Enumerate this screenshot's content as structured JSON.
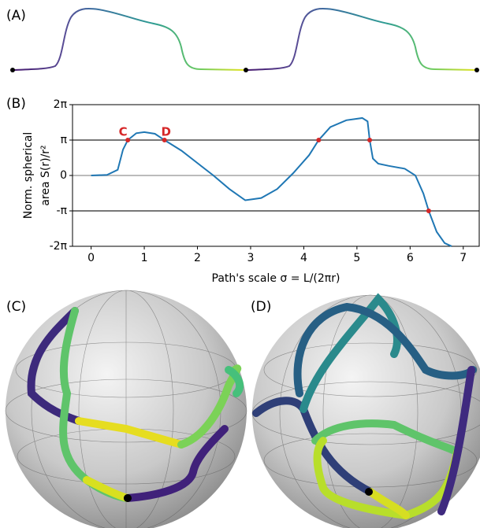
{
  "panel_labels": [
    "(A)",
    "(B)",
    "(C)",
    "(D)"
  ],
  "chart_data": {
    "type": "line",
    "x_label": "Path's scale σ = L/(2πr)",
    "y_label": [
      "Norm. spherical",
      "area S(r)/r²"
    ],
    "x": [
      0,
      0.3,
      0.5,
      0.6,
      0.69,
      0.85,
      1.0,
      1.2,
      1.38,
      1.7,
      2.0,
      2.3,
      2.6,
      2.9,
      3.2,
      3.5,
      3.8,
      4.1,
      4.28,
      4.5,
      4.8,
      5.1,
      5.2,
      5.24,
      5.3,
      5.4,
      5.6,
      5.9,
      6.1,
      6.25,
      6.35,
      6.5,
      6.65,
      6.78
    ],
    "values": [
      0,
      0.05,
      0.5,
      2.3,
      3.14,
      3.75,
      3.85,
      3.7,
      3.14,
      2.2,
      1.1,
      0.0,
      -1.2,
      -2.2,
      -2.0,
      -1.2,
      0.2,
      1.8,
      3.14,
      4.3,
      4.9,
      5.1,
      4.8,
      3.14,
      1.5,
      1.05,
      0.85,
      0.6,
      0.0,
      -1.6,
      -3.14,
      -5.0,
      -6.0,
      -6.28
    ],
    "color": "#1f77b4",
    "points": {
      "x": [
        0.69,
        1.38,
        4.28,
        5.24,
        6.35
      ],
      "values": [
        3.14,
        3.14,
        3.14,
        3.14,
        -3.14
      ],
      "color": "#d62728"
    },
    "annotations": [
      "C",
      "D"
    ],
    "hlines": [
      {
        "value": 3.14159,
        "color": "#777"
      },
      {
        "value": 0,
        "color": "#bbb"
      },
      {
        "value": -3.14159,
        "color": "#777"
      }
    ],
    "xlim": [
      -0.35,
      7.3
    ],
    "ylim": [
      -6.28318,
      6.28318
    ],
    "xticks": [
      0,
      1,
      2,
      3,
      4,
      5,
      6,
      7
    ],
    "yticks": [
      {
        "value": 6.28318,
        "label": "2π"
      },
      {
        "value": 3.14159,
        "label": "π"
      },
      0,
      {
        "value": -3.14159,
        "label": "-π"
      },
      {
        "value": -6.28318,
        "label": "-2π"
      }
    ]
  }
}
